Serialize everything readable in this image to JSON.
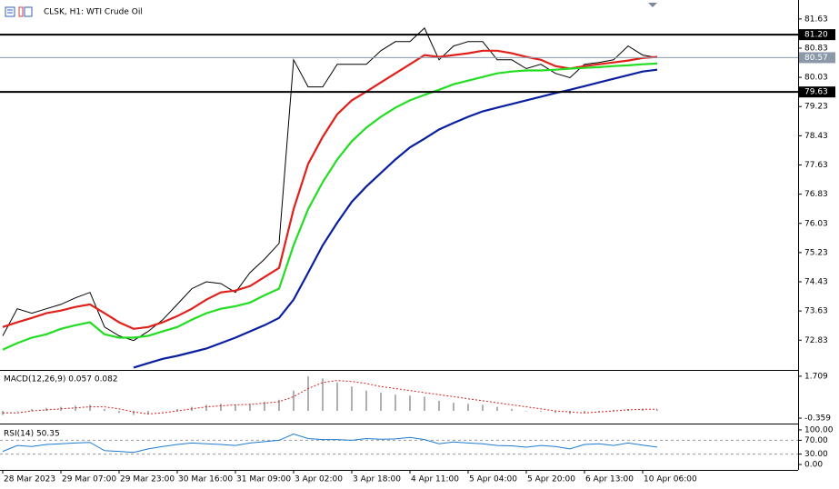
{
  "chart_data": [
    {
      "type": "line",
      "title": "CLSK, H1:  WTI Crude Oil",
      "categories": [
        "28 Mar 2023",
        null,
        null,
        null,
        "29 Mar 07:00",
        null,
        null,
        null,
        "29 Mar 23:00",
        null,
        null,
        null,
        "30 Mar 16:00",
        null,
        null,
        null,
        "31 Mar 09:00",
        null,
        null,
        null,
        "3 Apr 02:00",
        null,
        null,
        null,
        "3 Apr 18:00",
        null,
        null,
        null,
        "4 Apr 11:00",
        null,
        null,
        null,
        "5 Apr 04:00",
        null,
        null,
        null,
        "5 Apr 20:00",
        null,
        null,
        null,
        "6 Apr 13:00",
        null,
        null,
        null,
        "10 Apr 06:00",
        null
      ],
      "series": [
        {
          "color": "#000000",
          "values": [
            72.95,
            73.69,
            73.57,
            73.69,
            73.81,
            73.99,
            74.14,
            73.19,
            72.95,
            72.82,
            73.07,
            73.39,
            73.81,
            74.24,
            74.43,
            74.38,
            74.14,
            74.68,
            75.05,
            75.48,
            80.51,
            79.77,
            79.77,
            80.39,
            80.39,
            80.39,
            80.76,
            81.01,
            81.01,
            81.38,
            80.51,
            80.89,
            81.01,
            81.01,
            80.51,
            80.51,
            80.27,
            80.39,
            80.14,
            80.02,
            80.39,
            80.44,
            80.51,
            80.89,
            80.64,
            80.57
          ]
        },
        {
          "color": "#e0201b",
          "values": [
            73.19,
            73.32,
            73.44,
            73.57,
            73.64,
            73.74,
            73.81,
            73.57,
            73.32,
            73.14,
            73.19,
            73.32,
            73.49,
            73.69,
            73.94,
            74.14,
            74.19,
            74.31,
            74.56,
            74.81,
            76.42,
            77.66,
            78.4,
            79.02,
            79.4,
            79.64,
            79.89,
            80.14,
            80.39,
            80.64,
            80.59,
            80.64,
            80.69,
            80.76,
            80.76,
            80.69,
            80.59,
            80.51,
            80.34,
            80.27,
            80.34,
            80.39,
            80.44,
            80.49,
            80.56,
            80.59
          ]
        },
        {
          "color": "#22dd22",
          "values": [
            72.57,
            72.75,
            72.9,
            72.99,
            73.14,
            73.24,
            73.32,
            72.99,
            72.9,
            72.9,
            72.95,
            73.07,
            73.19,
            73.39,
            73.57,
            73.69,
            73.76,
            73.86,
            74.06,
            74.24,
            75.43,
            76.42,
            77.16,
            77.78,
            78.28,
            78.65,
            78.95,
            79.2,
            79.4,
            79.55,
            79.69,
            79.84,
            79.94,
            80.04,
            80.14,
            80.19,
            80.22,
            80.22,
            80.24,
            80.27,
            80.29,
            80.31,
            80.34,
            80.36,
            80.39,
            80.41
          ]
        },
        {
          "color": "#0a1fa0",
          "values": [
            null,
            null,
            null,
            null,
            null,
            null,
            null,
            null,
            null,
            72.08,
            72.2,
            72.32,
            72.4,
            72.5,
            72.6,
            72.75,
            72.9,
            73.07,
            73.24,
            73.44,
            73.94,
            74.68,
            75.43,
            76.05,
            76.62,
            77.04,
            77.41,
            77.78,
            78.11,
            78.35,
            78.6,
            78.78,
            78.95,
            79.1,
            79.2,
            79.3,
            79.4,
            79.5,
            79.6,
            79.69,
            79.79,
            79.89,
            79.99,
            80.09,
            80.19,
            80.24
          ]
        }
      ],
      "ylim": [
        72.04,
        82.0
      ],
      "yticks": [
        81.63,
        80.83,
        80.03,
        79.23,
        78.43,
        77.63,
        76.83,
        76.03,
        75.23,
        74.43,
        73.63,
        72.83
      ],
      "levels": [
        {
          "value": 81.2,
          "label": "81.20",
          "color": "#000000"
        },
        {
          "value": 79.63,
          "label": "79.63",
          "color": "#000000"
        },
        {
          "value": 80.57,
          "label": "80.57",
          "color": "#8a98a8"
        }
      ]
    },
    {
      "type": "macd",
      "title": "MACD(12,26,9) 0.057 0.082",
      "values": [
        -0.2,
        0.0,
        0.1,
        0.15,
        0.2,
        0.25,
        0.3,
        0.1,
        -0.1,
        -0.2,
        -0.15,
        0.0,
        0.1,
        0.2,
        0.3,
        0.35,
        0.3,
        0.35,
        0.45,
        0.55,
        1.0,
        1.7,
        1.6,
        1.4,
        1.2,
        1.0,
        0.9,
        0.8,
        0.75,
        0.7,
        0.5,
        0.4,
        0.35,
        0.3,
        0.2,
        0.1,
        0.0,
        -0.05,
        -0.1,
        -0.15,
        -0.1,
        0.0,
        0.05,
        0.1,
        0.08,
        0.057
      ],
      "color": "#b0b0b0",
      "series": [
        {
          "color": "#d02020",
          "values": [
            -0.1,
            -0.1,
            0.0,
            0.05,
            0.1,
            0.15,
            0.2,
            0.2,
            0.1,
            -0.05,
            -0.15,
            -0.1,
            0.0,
            0.1,
            0.2,
            0.25,
            0.3,
            0.32,
            0.38,
            0.45,
            0.7,
            1.1,
            1.4,
            1.5,
            1.45,
            1.35,
            1.2,
            1.1,
            1.0,
            0.9,
            0.8,
            0.7,
            0.6,
            0.5,
            0.4,
            0.3,
            0.2,
            0.1,
            0.0,
            -0.05,
            -0.1,
            -0.05,
            0.0,
            0.05,
            0.08,
            0.082
          ]
        }
      ],
      "ylim": [
        -0.58,
        1.93
      ],
      "yticks": [
        1.709,
        -0.359
      ]
    },
    {
      "type": "rsi",
      "title": "RSI(14) 50.35",
      "series": [
        {
          "color": "#1e7bd0",
          "values": [
            38,
            55,
            52,
            58,
            60,
            62,
            64,
            40,
            38,
            35,
            45,
            52,
            58,
            62,
            60,
            58,
            55,
            62,
            66,
            70,
            88,
            75,
            72,
            72,
            70,
            75,
            73,
            74,
            78,
            72,
            60,
            65,
            62,
            60,
            55,
            54,
            50,
            55,
            52,
            45,
            58,
            60,
            55,
            62,
            56,
            50.35
          ]
        }
      ],
      "ylim": [
        -13,
        113
      ],
      "yticks": [
        {
          "value": 100,
          "label": "100.00"
        },
        {
          "value": 70,
          "label": "70.00"
        },
        {
          "value": 30,
          "label": "30.00"
        },
        {
          "value": 0,
          "label": "0.00"
        }
      ],
      "levels": [
        70,
        30
      ]
    }
  ]
}
